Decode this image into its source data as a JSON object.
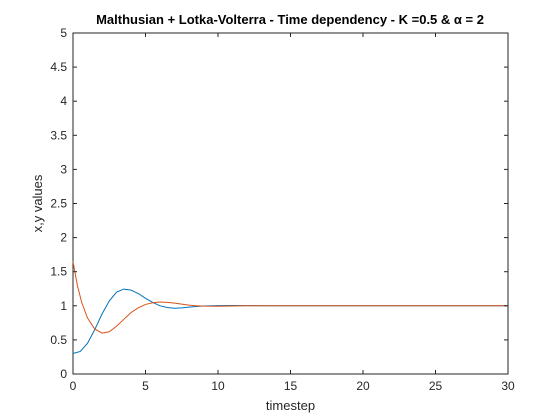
{
  "chart_data": {
    "type": "line",
    "title": "Malthusian + Lotka-Volterra - Time dependency - K =0.5 & α = 2",
    "xlabel": "timestep",
    "ylabel": "x,y values",
    "xlim": [
      0,
      30
    ],
    "ylim": [
      0,
      5
    ],
    "xticks": [
      0,
      5,
      10,
      15,
      20,
      25,
      30
    ],
    "yticks": [
      0,
      0.5,
      1,
      1.5,
      2,
      2.5,
      3,
      3.5,
      4,
      4.5,
      5
    ],
    "grid": false,
    "series": [
      {
        "color": "#0072BD",
        "x": [
          0,
          0.5,
          1,
          1.5,
          2,
          2.5,
          3,
          3.5,
          4,
          4.5,
          5,
          5.5,
          6,
          6.5,
          7,
          7.5,
          8,
          8.5,
          9,
          10,
          11,
          12,
          13,
          14,
          15,
          20,
          25,
          30
        ],
        "y": [
          0.3,
          0.33,
          0.45,
          0.65,
          0.88,
          1.07,
          1.2,
          1.245,
          1.23,
          1.18,
          1.11,
          1.05,
          1.0,
          0.975,
          0.965,
          0.97,
          0.98,
          0.99,
          0.997,
          1.003,
          1.005,
          1.003,
          1.001,
          1.0,
          1.0,
          1.0,
          1.0,
          1.0
        ]
      },
      {
        "color": "#D95319",
        "x": [
          0,
          0.3,
          0.6,
          1,
          1.5,
          2,
          2.5,
          3,
          3.5,
          4,
          4.5,
          5,
          5.5,
          6,
          6.5,
          7,
          7.5,
          8,
          8.5,
          9,
          10,
          11,
          12,
          13,
          14,
          15,
          20,
          25,
          30
        ],
        "y": [
          1.65,
          1.3,
          1.05,
          0.82,
          0.66,
          0.6,
          0.62,
          0.7,
          0.8,
          0.9,
          0.97,
          1.02,
          1.045,
          1.055,
          1.05,
          1.04,
          1.025,
          1.01,
          1.0,
          0.995,
          0.994,
          0.997,
          1.0,
          1.0,
          1.0,
          1.0,
          1.0,
          1.0,
          1.0
        ]
      }
    ]
  }
}
